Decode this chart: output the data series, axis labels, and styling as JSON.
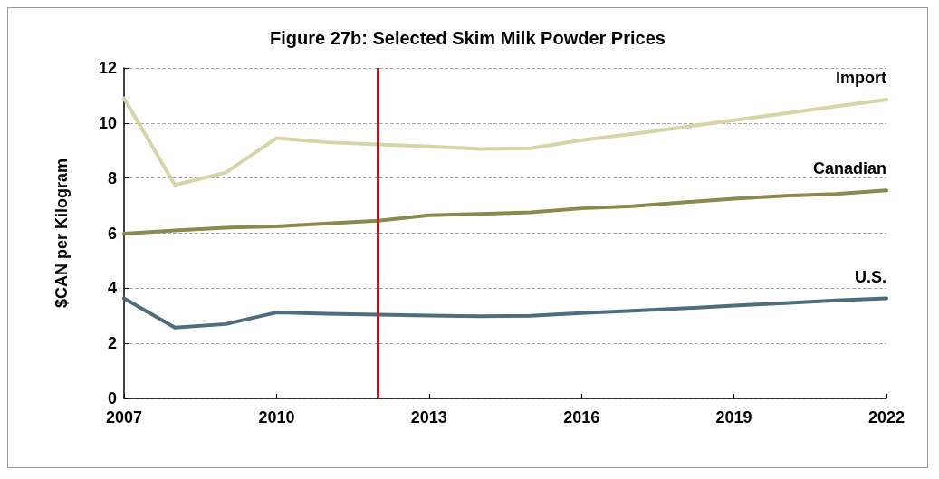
{
  "chart_data": {
    "type": "line",
    "title": "Figure 27b: Selected Skim Milk Powder Prices",
    "ylabel": "$CAN per Kilogram",
    "x": [
      2007,
      2008,
      2009,
      2010,
      2011,
      2012,
      2013,
      2014,
      2015,
      2016,
      2017,
      2018,
      2019,
      2020,
      2021,
      2022
    ],
    "series": [
      {
        "name": "Import",
        "color": "#d6d5a8",
        "values": [
          10.9,
          7.75,
          8.2,
          9.45,
          9.3,
          9.22,
          9.15,
          9.06,
          9.08,
          9.38,
          9.6,
          9.85,
          10.1,
          10.35,
          10.6,
          10.85
        ]
      },
      {
        "name": "Canadian",
        "color": "#8a8a4e",
        "values": [
          5.98,
          6.1,
          6.2,
          6.25,
          6.35,
          6.45,
          6.65,
          6.7,
          6.76,
          6.9,
          6.98,
          7.12,
          7.25,
          7.36,
          7.42,
          7.55
        ]
      },
      {
        "name": "U.S.",
        "color": "#4f6e7d",
        "values": [
          3.63,
          2.57,
          2.7,
          3.12,
          3.07,
          3.04,
          3.01,
          2.98,
          3.0,
          3.1,
          3.18,
          3.27,
          3.37,
          3.46,
          3.56,
          3.63
        ]
      }
    ],
    "xlim": [
      2007,
      2022
    ],
    "xticks": [
      2007,
      2010,
      2013,
      2016,
      2019,
      2022
    ],
    "ylim": [
      0,
      12
    ],
    "yticks": [
      0,
      2,
      4,
      6,
      8,
      10,
      12
    ],
    "ref_lines": [
      {
        "axis": "x",
        "value": 2012,
        "color": "#c0141c"
      }
    ],
    "grid": "y",
    "legend": false,
    "marker": "none",
    "line_style": "solid"
  }
}
